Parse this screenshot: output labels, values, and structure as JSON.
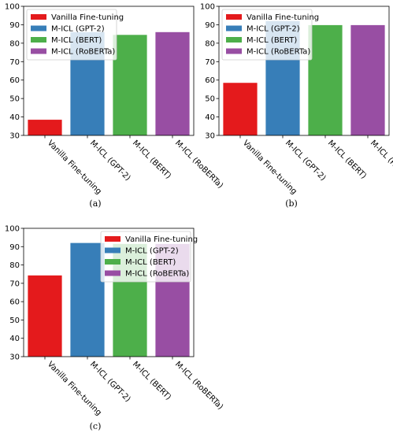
{
  "chart_data": [
    {
      "type": "bar",
      "caption": "(a)",
      "categories": [
        "Vanilla Fine-tuning",
        "M-ICL (GPT-2)",
        "M-ICL (BERT)",
        "M-ICL (RoBERTa)"
      ],
      "values": [
        38.5,
        86,
        84.5,
        86
      ],
      "colors": [
        "#e41a1c",
        "#377eb8",
        "#4daf4a",
        "#984ea3"
      ],
      "ylim": [
        30,
        100
      ],
      "yticks": [
        "30",
        "40",
        "50",
        "60",
        "70",
        "80",
        "90",
        "100"
      ],
      "legend": [
        "Vanilla Fine-tuning",
        "M-ICL (GPT-2)",
        "M-ICL (BERT)",
        "M-ICL (RoBERTa)"
      ],
      "legend_position": "top-left",
      "grid": false
    },
    {
      "type": "bar",
      "caption": "(b)",
      "categories": [
        "Vanilla Fine-tuning",
        "M-ICL (GPT-2)",
        "M-ICL (BERT)",
        "M-ICL (RoBERTa)"
      ],
      "values": [
        58.5,
        92,
        89.8,
        89.8
      ],
      "colors": [
        "#e41a1c",
        "#377eb8",
        "#4daf4a",
        "#984ea3"
      ],
      "ylim": [
        30,
        100
      ],
      "yticks": [
        "30",
        "40",
        "50",
        "60",
        "70",
        "80",
        "90",
        "100"
      ],
      "legend": [
        "Vanilla Fine-tuning",
        "M-ICL (GPT-2)",
        "M-ICL (BERT)",
        "M-ICL (RoBERTa)"
      ],
      "legend_position": "top-left",
      "grid": false
    },
    {
      "type": "bar",
      "caption": "(c)",
      "categories": [
        "Vanilla Fine-tuning",
        "M-ICL (GPT-2)",
        "M-ICL (BERT)",
        "M-ICL (RoBERTa)"
      ],
      "values": [
        74.3,
        92,
        91.5,
        91.5
      ],
      "colors": [
        "#e41a1c",
        "#377eb8",
        "#4daf4a",
        "#984ea3"
      ],
      "ylim": [
        30,
        100
      ],
      "yticks": [
        "30",
        "40",
        "50",
        "60",
        "70",
        "80",
        "90",
        "100"
      ],
      "legend": [
        "Vanilla Fine-tuning",
        "M-ICL (GPT-2)",
        "M-ICL (BERT)",
        "M-ICL (RoBERTa)"
      ],
      "legend_position": "top-right",
      "grid": false
    }
  ]
}
